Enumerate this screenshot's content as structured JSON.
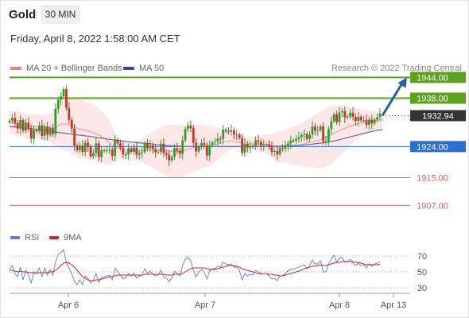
{
  "header": {
    "instrument": "Gold",
    "timeframe": "30 MIN",
    "datetime": "Friday, April 8, 2022 1:58:00 AM CET"
  },
  "legend": {
    "ma20_label": "MA 20 + Bollinger Bands",
    "ma50_label": "MA 50",
    "credit": "Research © 2022 Trading Central",
    "rsi_label": "RSI",
    "rsi_ma_label": "9MA"
  },
  "colors": {
    "up_candle": "#2e9e2e",
    "down_candle": "#c0392b",
    "resistance": "#5aa31a",
    "support_blue": "#2a6fd1",
    "support_red": "#e05a5a",
    "bollinger_fill": "#fde3e3",
    "ma20": "#f08080",
    "ma50": "#5b6f9e",
    "rsi": "#5b7fd1",
    "rsi_ma": "#e02020",
    "arrow": "#2a5fa8",
    "current_tag": "#333333"
  },
  "chart_data": [
    {
      "type": "candlestick",
      "title": "Gold",
      "timeframe": "30 MIN",
      "x_tick_labels": [
        "Apr 6",
        "Apr 7",
        "Apr 8",
        "Apr 13"
      ],
      "ylim": [
        1902,
        1948
      ],
      "price_lines": [
        {
          "label": "1944.00",
          "value": 1944.0,
          "kind": "resistance"
        },
        {
          "label": "1938.00",
          "value": 1938.0,
          "kind": "resistance"
        },
        {
          "label": "1932.94",
          "value": 1932.94,
          "kind": "current"
        },
        {
          "label": "1924.00",
          "value": 1924.0,
          "kind": "support_blue"
        },
        {
          "label": "1915.00",
          "value": 1915.0,
          "kind": "support_red"
        },
        {
          "label": "1907.00",
          "value": 1907.0,
          "kind": "support_red"
        }
      ],
      "close": [
        1931.5,
        1932.3,
        1930.8,
        1929.2,
        1931.7,
        1928.6,
        1930.9,
        1929.4,
        1926.3,
        1928.7,
        1928.5,
        1930.1,
        1927.1,
        1929.8,
        1927.4,
        1929.4,
        1927.6,
        1934.9,
        1937.5,
        1938.5,
        1940.6,
        1935.2,
        1931.7,
        1929.2,
        1924.3,
        1922.9,
        1924.3,
        1922.5,
        1925.1,
        1924.1,
        1921.2,
        1922.1,
        1924.9,
        1921.0,
        1922.9,
        1922.8,
        1922.9,
        1923.1,
        1921.3,
        1925.9,
        1924.9,
        1923.7,
        1921.7,
        1921.7,
        1923.5,
        1922.5,
        1923.7,
        1921.6,
        1922.1,
        1922.4,
        1925.0,
        1923.5,
        1924.3,
        1923.3,
        1922.4,
        1922.5,
        1924.8,
        1922.1,
        1921.6,
        1920.0,
        1921.0,
        1923.5,
        1922.8,
        1921.9,
        1925.8,
        1929.1,
        1930.0,
        1929.3,
        1925.1,
        1922.6,
        1924.0,
        1925.0,
        1924.4,
        1921.4,
        1924.4,
        1925.2,
        1925.4,
        1926.3,
        1926.2,
        1928.9,
        1928.5,
        1928.3,
        1928.7,
        1927.5,
        1927.5,
        1926.5,
        1922.2,
        1924.8,
        1923.7,
        1924.2,
        1924.0,
        1925.8,
        1925.3,
        1924.3,
        1924.6,
        1924.7,
        1923.9,
        1922.5,
        1922.7,
        1921.7,
        1923.5,
        1923.4,
        1924.1,
        1924.9,
        1925.8,
        1925.7,
        1926.2,
        1926.7,
        1927.3,
        1927.6,
        1926.2,
        1927.4,
        1929.8,
        1928.6,
        1928.7,
        1929.8,
        1925.5,
        1925.5,
        1929.1,
        1931.3,
        1933.3,
        1931.1,
        1933.9,
        1934.2,
        1932.4,
        1932.7,
        1933.8,
        1932.6,
        1931.4,
        1932.6,
        1931.6,
        1931.7,
        1930.3,
        1931.8,
        1930.7,
        1931.8,
        1932.5,
        1933.5
      ],
      "ma20_values": [
        1931.0,
        1930.9,
        1930.7,
        1930.5,
        1930.4,
        1930.3,
        1930.1,
        1929.9,
        1929.8,
        1929.7,
        1929.7,
        1929.7,
        1929.7,
        1929.6,
        1929.6,
        1929.4,
        1929.3,
        1929.6,
        1930.0,
        1930.5,
        1930.5,
        1930.5,
        1930.5,
        1930.1,
        1929.7,
        1929.4,
        1929.1,
        1928.9,
        1928.7,
        1928.5,
        1928.3,
        1928.0,
        1927.7,
        1927.3,
        1926.9,
        1926.4,
        1925.8,
        1925.1,
        1924.4,
        1923.9,
        1923.6,
        1923.3,
        1923.1,
        1922.9,
        1922.9,
        1922.8,
        1922.8,
        1922.8,
        1922.9,
        1922.9,
        1922.9,
        1923.0,
        1923.0,
        1923.1,
        1923.1,
        1923.0,
        1923.1,
        1923.0,
        1922.9,
        1922.7,
        1922.6,
        1922.6,
        1922.6,
        1922.6,
        1922.7,
        1923.0,
        1923.3,
        1923.5,
        1923.6,
        1923.7,
        1923.8,
        1924.0,
        1924.1,
        1924.1,
        1924.2,
        1924.4,
        1924.6,
        1924.8,
        1925.0,
        1925.3,
        1925.5,
        1925.5,
        1925.6,
        1925.6,
        1925.4,
        1925.2,
        1924.9,
        1924.7,
        1924.7,
        1924.8,
        1924.8,
        1924.8,
        1924.8,
        1924.8,
        1924.7,
        1924.6,
        1924.5,
        1924.3,
        1924.1,
        1923.9,
        1923.8,
        1923.9,
        1924.0,
        1924.1,
        1924.2,
        1924.3,
        1924.4,
        1924.5,
        1924.6,
        1924.8,
        1925.0,
        1925.2,
        1925.4,
        1925.6,
        1925.8,
        1926.0,
        1926.3,
        1926.6,
        1927.0,
        1927.4,
        1927.8,
        1928.2,
        1928.6,
        1929.0,
        1929.3,
        1929.6,
        1929.9,
        1930.2,
        1930.4,
        1930.6,
        1930.8,
        1931.0,
        1931.1,
        1931.2,
        1931.4,
        1931.5,
        1931.6,
        1931.7,
        1931.8
      ],
      "bollinger_upper": [
        1934.3,
        1934.3,
        1934.2,
        1934.1,
        1934.0,
        1933.9,
        1933.7,
        1933.5,
        1933.4,
        1933.3,
        1933.2,
        1933.2,
        1933.2,
        1933.2,
        1933.3,
        1933.6,
        1934.0,
        1935.0,
        1936.5,
        1937.5,
        1938.0,
        1938.2,
        1938.3,
        1938.2,
        1938.1,
        1937.9,
        1937.7,
        1937.4,
        1937.1,
        1936.8,
        1936.5,
        1936.0,
        1935.5,
        1934.9,
        1934.3,
        1933.6,
        1932.8,
        1931.5,
        1929.8,
        1928.0,
        1926.8,
        1926.0,
        1925.6,
        1925.4,
        1925.3,
        1925.3,
        1925.4,
        1925.6,
        1925.9,
        1926.3,
        1926.8,
        1927.3,
        1927.8,
        1928.3,
        1928.8,
        1929.3,
        1929.7,
        1930.0,
        1930.2,
        1930.3,
        1930.3,
        1930.3,
        1930.2,
        1930.2,
        1930.2,
        1930.3,
        1930.5,
        1930.6,
        1930.6,
        1930.5,
        1930.4,
        1930.3,
        1930.2,
        1930.1,
        1930.0,
        1929.8,
        1929.6,
        1929.4,
        1929.2,
        1929.0,
        1928.7,
        1928.4,
        1928.1,
        1927.8,
        1927.5,
        1927.3,
        1927.1,
        1926.9,
        1926.9,
        1926.9,
        1926.9,
        1927.0,
        1927.1,
        1927.2,
        1927.3,
        1927.4,
        1927.5,
        1927.7,
        1927.9,
        1928.1,
        1928.3,
        1928.5,
        1928.8,
        1929.1,
        1929.4,
        1929.7,
        1930.1,
        1930.5,
        1930.9,
        1931.4,
        1931.9,
        1932.3,
        1932.8,
        1933.3,
        1933.8,
        1934.3,
        1934.7,
        1935.1,
        1935.4,
        1935.7,
        1935.9,
        1936.0,
        1936.0,
        1936.0,
        1935.9,
        1935.8,
        1935.6,
        1935.4,
        1935.2,
        1935.0,
        1934.8,
        1934.6,
        1934.5,
        1934.4,
        1934.3,
        1934.3,
        1934.3,
        1934.3,
        1934.4
      ],
      "bollinger_lower": [
        1927.7,
        1927.5,
        1927.2,
        1926.9,
        1926.8,
        1926.7,
        1926.5,
        1926.3,
        1926.2,
        1926.1,
        1926.2,
        1926.2,
        1926.2,
        1926.0,
        1925.9,
        1925.2,
        1924.6,
        1924.2,
        1923.5,
        1923.5,
        1923.0,
        1922.8,
        1922.7,
        1922.0,
        1921.3,
        1920.9,
        1920.5,
        1920.4,
        1920.3,
        1920.2,
        1920.1,
        1920.0,
        1919.9,
        1919.7,
        1919.5,
        1919.2,
        1918.8,
        1918.7,
        1919.0,
        1919.8,
        1920.4,
        1920.6,
        1920.6,
        1920.4,
        1920.5,
        1920.3,
        1920.2,
        1920.0,
        1919.9,
        1919.5,
        1919.0,
        1918.7,
        1918.2,
        1917.9,
        1917.4,
        1916.7,
        1916.5,
        1916.0,
        1915.6,
        1915.1,
        1914.9,
        1914.9,
        1915.0,
        1915.0,
        1915.2,
        1915.7,
        1916.1,
        1916.4,
        1916.6,
        1916.9,
        1917.2,
        1917.7,
        1918.0,
        1918.1,
        1918.4,
        1919.0,
        1919.6,
        1920.2,
        1920.8,
        1921.6,
        1922.3,
        1922.6,
        1923.1,
        1923.4,
        1923.3,
        1923.1,
        1922.7,
        1922.5,
        1922.5,
        1922.7,
        1922.7,
        1922.6,
        1922.5,
        1922.4,
        1922.1,
        1921.8,
        1921.5,
        1920.9,
        1920.3,
        1919.7,
        1919.3,
        1919.3,
        1919.2,
        1919.1,
        1919.0,
        1918.9,
        1918.7,
        1918.5,
        1918.3,
        1918.2,
        1918.1,
        1918.1,
        1918.0,
        1917.9,
        1917.8,
        1917.7,
        1917.9,
        1918.1,
        1918.6,
        1919.1,
        1919.7,
        1920.4,
        1921.2,
        1922.0,
        1922.7,
        1923.4,
        1924.2,
        1925.0,
        1925.6,
        1926.2,
        1926.8,
        1927.4,
        1927.7,
        1928.0,
        1928.5,
        1928.7,
        1928.9,
        1929.1,
        1929.2
      ],
      "ma50_values": [
        1929.8,
        1929.7,
        1929.7,
        1929.6,
        1929.5,
        1929.4,
        1929.3,
        1929.2,
        1929.1,
        1929.0,
        1928.9,
        1928.8,
        1928.7,
        1928.6,
        1928.5,
        1928.4,
        1928.3,
        1928.2,
        1928.1,
        1928.0,
        1927.9,
        1927.8,
        1927.7,
        1927.6,
        1927.5,
        1927.4,
        1927.3,
        1927.2,
        1927.1,
        1927.0,
        1926.9,
        1926.8,
        1926.6,
        1926.5,
        1926.4,
        1926.3,
        1926.2,
        1926.1,
        1926.0,
        1925.9,
        1925.8,
        1925.7,
        1925.6,
        1925.5,
        1925.4,
        1925.3,
        1925.2,
        1925.2,
        1925.1,
        1925.0,
        1924.9,
        1924.9,
        1924.8,
        1924.7,
        1924.6,
        1924.5,
        1924.5,
        1924.4,
        1924.3,
        1924.3,
        1924.2,
        1924.2,
        1924.1,
        1924.1,
        1924.0,
        1924.0,
        1924.0,
        1924.0,
        1924.0,
        1924.0,
        1924.0,
        1924.0,
        1924.0,
        1924.0,
        1924.0,
        1924.0,
        1924.0,
        1924.0,
        1924.0,
        1924.0,
        1924.0,
        1924.0,
        1924.0,
        1924.0,
        1924.0,
        1924.0,
        1924.0,
        1924.0,
        1924.0,
        1924.0,
        1924.0,
        1924.0,
        1924.0,
        1924.0,
        1924.0,
        1924.0,
        1924.0,
        1924.1,
        1924.1,
        1924.1,
        1924.1,
        1924.2,
        1924.2,
        1924.2,
        1924.3,
        1924.3,
        1924.3,
        1924.4,
        1924.4,
        1924.5,
        1924.5,
        1924.6,
        1924.7,
        1924.8,
        1924.9,
        1925.0,
        1925.1,
        1925.2,
        1925.3,
        1925.5,
        1925.6,
        1925.8,
        1926.0,
        1926.2,
        1926.4,
        1926.6,
        1926.8,
        1927.0,
        1927.2,
        1927.4,
        1927.6,
        1927.8,
        1928.0,
        1928.2,
        1928.4,
        1928.5,
        1928.7,
        1928.8,
        1928.9
      ],
      "forecast_arrow": {
        "from_value": 1932.94,
        "to_value": 1944.0
      }
    },
    {
      "type": "line",
      "title": "RSI",
      "y_tick_labels": [
        "70",
        "50",
        "30"
      ],
      "ylim": [
        20,
        80
      ],
      "reference_lines": [
        70,
        50,
        30
      ],
      "series": [
        {
          "name": "RSI",
          "values": [
            53,
            58,
            48,
            44,
            56,
            40,
            52,
            47,
            36,
            50,
            48,
            55,
            44,
            55,
            46,
            53,
            46,
            62,
            72,
            74,
            78,
            62,
            55,
            48,
            38,
            34,
            40,
            34,
            45,
            42,
            36,
            40,
            48,
            37,
            43,
            44,
            45,
            46,
            40,
            55,
            50,
            46,
            41,
            43,
            48,
            45,
            48,
            42,
            45,
            46,
            54,
            48,
            51,
            47,
            45,
            46,
            52,
            44,
            42,
            38,
            42,
            51,
            48,
            45,
            58,
            66,
            68,
            64,
            52,
            44,
            50,
            53,
            50,
            41,
            51,
            54,
            54,
            57,
            56,
            62,
            60,
            59,
            60,
            56,
            56,
            52,
            40,
            48,
            45,
            47,
            46,
            52,
            50,
            47,
            48,
            48,
            45,
            41,
            42,
            39,
            45,
            45,
            48,
            51,
            54,
            53,
            55,
            56,
            58,
            59,
            54,
            58,
            65,
            60,
            60,
            64,
            50,
            50,
            60,
            66,
            71,
            62,
            68,
            68,
            62,
            63,
            66,
            61,
            58,
            61,
            58,
            59,
            55,
            60,
            57,
            60,
            61,
            63
          ]
        },
        {
          "name": "9MA",
          "values": [
            52,
            52,
            51,
            50,
            51,
            50,
            50,
            49,
            49,
            49,
            48,
            49,
            49,
            49,
            49,
            50,
            50,
            52,
            55,
            58,
            61,
            62,
            61,
            59,
            56,
            52,
            48,
            44,
            42,
            40,
            39,
            39,
            40,
            40,
            41,
            42,
            43,
            44,
            44,
            45,
            46,
            46,
            46,
            46,
            46,
            46,
            46,
            46,
            46,
            46,
            47,
            47,
            47,
            47,
            47,
            47,
            47,
            47,
            46,
            46,
            46,
            47,
            47,
            47,
            48,
            50,
            52,
            54,
            55,
            55,
            55,
            55,
            55,
            54,
            53,
            53,
            53,
            54,
            55,
            56,
            57,
            58,
            58,
            58,
            57,
            56,
            54,
            53,
            52,
            51,
            50,
            49,
            48,
            48,
            48,
            48,
            47,
            47,
            46,
            46,
            45,
            45,
            46,
            47,
            48,
            49,
            50,
            51,
            52,
            54,
            55,
            56,
            57,
            57,
            58,
            59,
            58,
            58,
            59,
            60,
            61,
            62,
            62,
            63,
            63,
            63,
            63,
            63,
            62,
            62,
            61,
            60,
            59,
            59,
            59,
            59,
            59,
            60
          ]
        }
      ]
    }
  ]
}
